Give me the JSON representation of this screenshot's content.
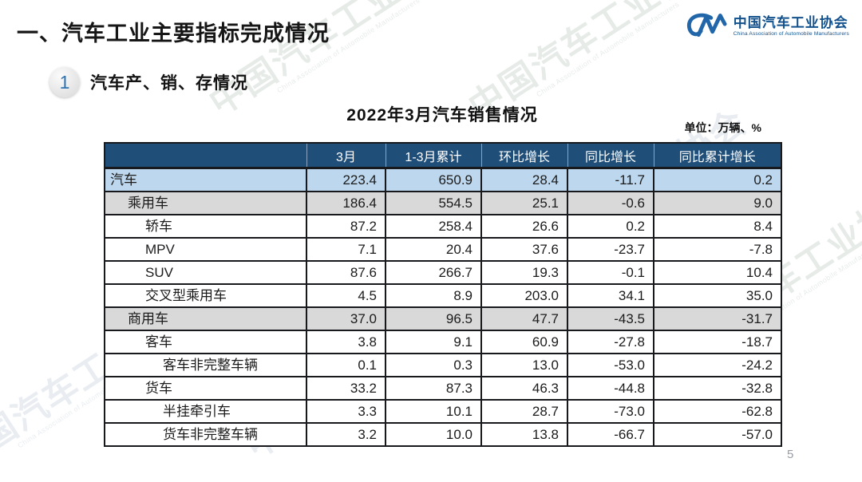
{
  "slide": {
    "title": "一、汽车工业主要指标完成情况",
    "section_number": "1",
    "section_title": "汽车产、销、存情况",
    "page_number": "5"
  },
  "logo": {
    "mark": "CM-swoosh",
    "name_cn": "中国汽车工业协会",
    "name_en": "China Association of Automobile Manufacturers"
  },
  "watermark": {
    "text_cn": "中国汽车工业协会",
    "text_en": "China Association of Automobile Manufacturers"
  },
  "colors": {
    "header_bg": "#1F4E79",
    "row_blue": "#BDD7EE",
    "row_gray": "#D9D9D9",
    "logo_blue": "#12508C",
    "badge_number_blue": "#2E74B5"
  },
  "table": {
    "title": "2022年3月汽车销售情况",
    "unit": "单位：万辆、%",
    "columns": [
      "",
      "3月",
      "1-3月累计",
      "环比增长",
      "同比增长",
      "同比累计增长"
    ],
    "rows": [
      {
        "label": "汽车",
        "indent": 0,
        "shade": "blue",
        "values": [
          "223.4",
          "650.9",
          "28.4",
          "-11.7",
          "0.2"
        ]
      },
      {
        "label": "乘用车",
        "indent": 1,
        "shade": "gray",
        "values": [
          "186.4",
          "554.5",
          "25.1",
          "-0.6",
          "9.0"
        ]
      },
      {
        "label": "轿车",
        "indent": 2,
        "shade": "white",
        "values": [
          "87.2",
          "258.4",
          "26.6",
          "0.2",
          "8.4"
        ]
      },
      {
        "label": "MPV",
        "indent": 2,
        "shade": "white",
        "values": [
          "7.1",
          "20.4",
          "37.6",
          "-23.7",
          "-7.8"
        ]
      },
      {
        "label": "SUV",
        "indent": 2,
        "shade": "white",
        "values": [
          "87.6",
          "266.7",
          "19.3",
          "-0.1",
          "10.4"
        ]
      },
      {
        "label": "交叉型乘用车",
        "indent": 2,
        "shade": "white",
        "values": [
          "4.5",
          "8.9",
          "203.0",
          "34.1",
          "35.0"
        ]
      },
      {
        "label": "商用车",
        "indent": 1,
        "shade": "gray",
        "values": [
          "37.0",
          "96.5",
          "47.7",
          "-43.5",
          "-31.7"
        ]
      },
      {
        "label": "客车",
        "indent": 2,
        "shade": "white",
        "values": [
          "3.8",
          "9.1",
          "60.9",
          "-27.8",
          "-18.7"
        ]
      },
      {
        "label": "客车非完整车辆",
        "indent": 3,
        "shade": "white",
        "values": [
          "0.1",
          "0.3",
          "13.0",
          "-53.0",
          "-24.2"
        ]
      },
      {
        "label": "货车",
        "indent": 2,
        "shade": "white",
        "values": [
          "33.2",
          "87.3",
          "46.3",
          "-44.8",
          "-32.8"
        ]
      },
      {
        "label": "半挂牵引车",
        "indent": 3,
        "shade": "white",
        "values": [
          "3.3",
          "10.1",
          "28.7",
          "-73.0",
          "-62.8"
        ]
      },
      {
        "label": "货车非完整车辆",
        "indent": 3,
        "shade": "white",
        "values": [
          "3.2",
          "10.0",
          "13.8",
          "-66.7",
          "-57.0"
        ]
      }
    ]
  }
}
